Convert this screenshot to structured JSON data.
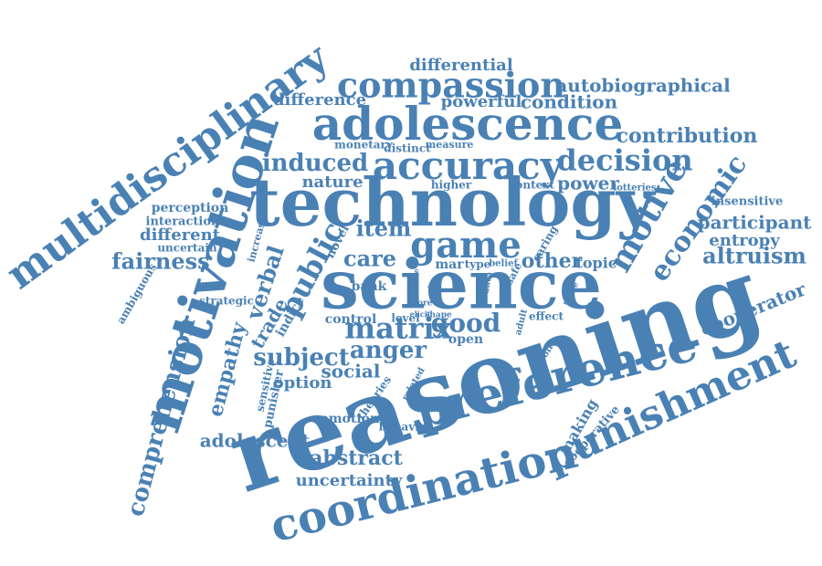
{
  "color": "#4a81b4",
  "words": [
    {
      "text": "reasoning"
    },
    {
      "text": "technology"
    },
    {
      "text": "science"
    },
    {
      "text": "motivation"
    },
    {
      "text": "multidisciplinary"
    },
    {
      "text": "preference"
    },
    {
      "text": "punishment"
    },
    {
      "text": "coordination"
    },
    {
      "text": "adolescence"
    },
    {
      "text": "compassion"
    },
    {
      "text": "accuracy"
    },
    {
      "text": "decision"
    },
    {
      "text": "game"
    },
    {
      "text": "motive"
    },
    {
      "text": "economic"
    },
    {
      "text": "comprehension"
    },
    {
      "text": "matrix"
    },
    {
      "text": "good"
    },
    {
      "text": "public"
    },
    {
      "text": "empathy"
    },
    {
      "text": "verbal"
    },
    {
      "text": "subject"
    },
    {
      "text": "anger"
    },
    {
      "text": "fairness"
    },
    {
      "text": "altruism"
    },
    {
      "text": "induced"
    },
    {
      "text": "item"
    },
    {
      "text": "care"
    },
    {
      "text": "contribution"
    },
    {
      "text": "autobiographical"
    },
    {
      "text": "condition"
    },
    {
      "text": "difference"
    },
    {
      "text": "differential"
    },
    {
      "text": "powerful"
    },
    {
      "text": "cooperator"
    },
    {
      "text": "participant"
    },
    {
      "text": "entropy"
    },
    {
      "text": "insensitive"
    },
    {
      "text": "power"
    },
    {
      "text": "other"
    },
    {
      "text": "topic"
    },
    {
      "text": "nature"
    },
    {
      "text": "adolescent"
    },
    {
      "text": "abstract"
    },
    {
      "text": "uncertainty"
    },
    {
      "text": "option"
    },
    {
      "text": "social"
    },
    {
      "text": "making"
    },
    {
      "text": "cooperative"
    },
    {
      "text": "emotion"
    },
    {
      "text": "behavior"
    },
    {
      "text": "different"
    },
    {
      "text": "perception"
    },
    {
      "text": "interaction"
    },
    {
      "text": "uncertain"
    },
    {
      "text": "ambiguous"
    },
    {
      "text": "strategic"
    },
    {
      "text": "monetary"
    },
    {
      "text": "distinct"
    },
    {
      "text": "measure"
    },
    {
      "text": "higher"
    },
    {
      "text": "context"
    },
    {
      "text": "lotteries"
    },
    {
      "text": "open"
    },
    {
      "text": "control"
    },
    {
      "text": "level"
    },
    {
      "text": "shape"
    },
    {
      "text": "effect"
    },
    {
      "text": "score"
    },
    {
      "text": "elicit"
    },
    {
      "text": "mar"
    },
    {
      "text": "type"
    },
    {
      "text": "belief"
    },
    {
      "text": "trade"
    },
    {
      "text": "indice"
    },
    {
      "text": "novel"
    },
    {
      "text": "bank"
    },
    {
      "text": "increase"
    },
    {
      "text": "punisher"
    },
    {
      "text": "sensitive"
    },
    {
      "text": "theories"
    },
    {
      "text": "related"
    },
    {
      "text": "data"
    },
    {
      "text": "safe"
    },
    {
      "text": "caring"
    },
    {
      "text": "adult"
    },
    {
      "text": "payoff"
    },
    {
      "text": "stable"
    },
    {
      "text": "factor"
    },
    {
      "text": "arise"
    },
    {
      "text": "acc"
    }
  ]
}
